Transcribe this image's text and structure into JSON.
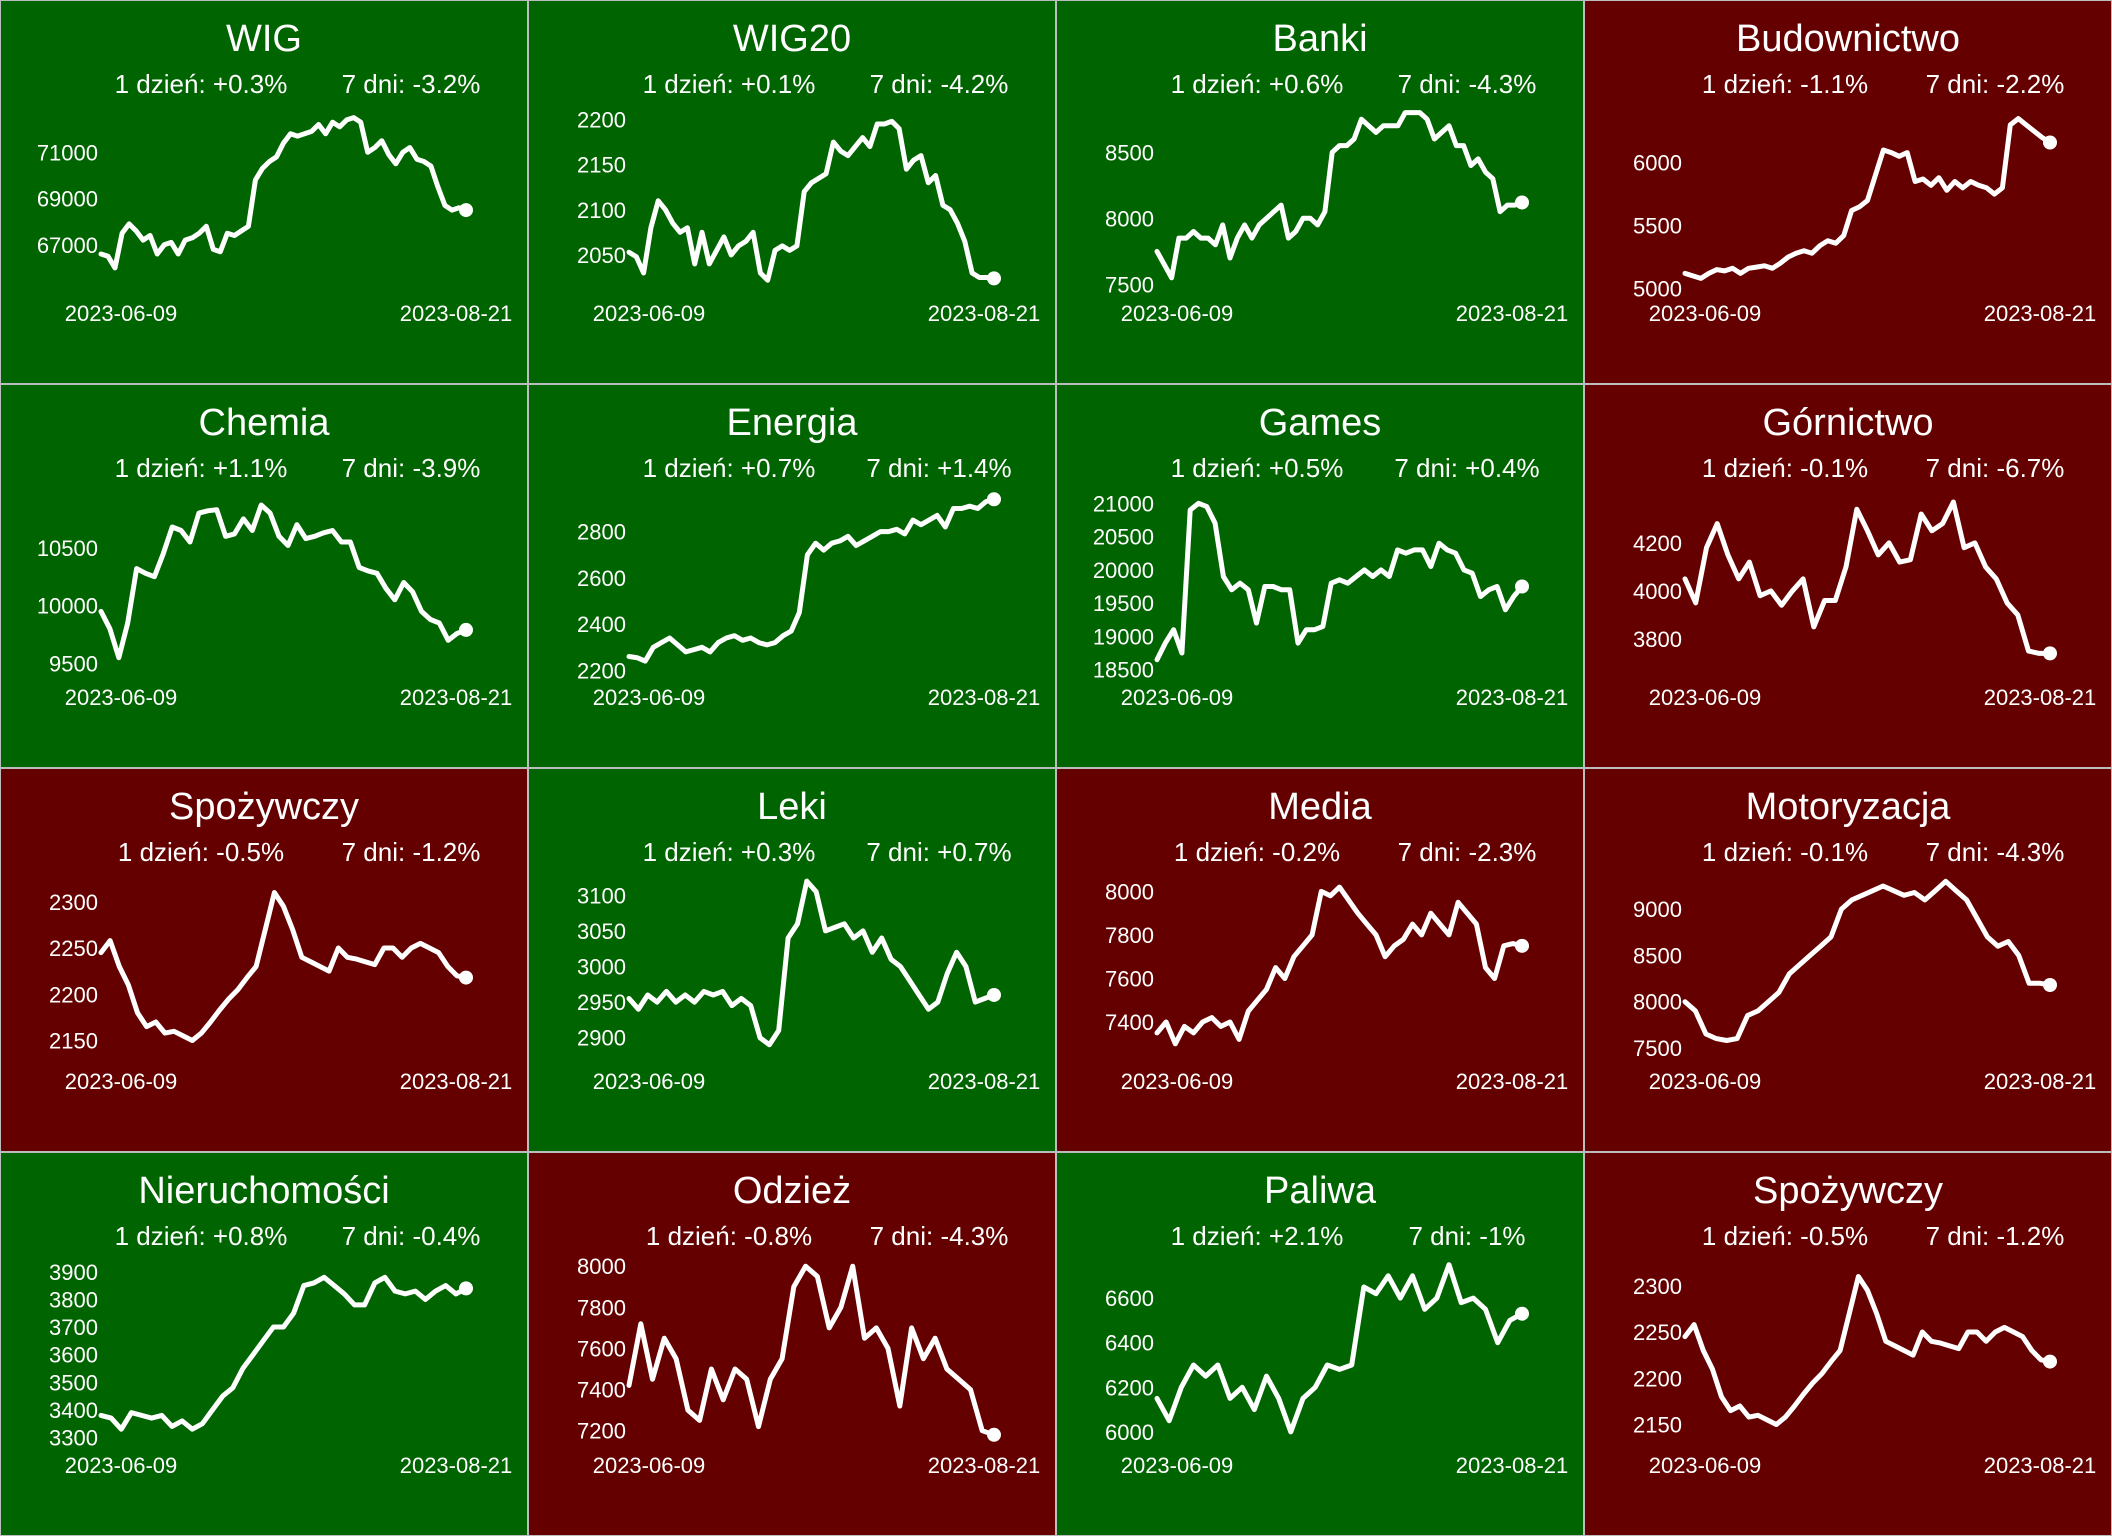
{
  "colors": {
    "up": "#006400",
    "down": "#640000",
    "line": "#ffffff"
  },
  "chart_data": [
    {
      "type": "line",
      "title": "WIG",
      "day_change": "1 dzień: +0.3%",
      "week_change": "7 dni: -3.2%",
      "trend": "up",
      "x_start": "2023-06-09",
      "x_end": "2023-08-21",
      "yticks": [
        67000,
        69000,
        71000
      ],
      "ylim": [
        65000,
        73000
      ],
      "values": [
        66600,
        66500,
        66000,
        67500,
        67900,
        67600,
        67200,
        67400,
        66600,
        67000,
        67100,
        66600,
        67200,
        67300,
        67500,
        67800,
        66800,
        66700,
        67500,
        67400,
        67600,
        67800,
        69800,
        70300,
        70600,
        70800,
        71400,
        71800,
        71700,
        71800,
        71900,
        72200,
        71800,
        72300,
        72100,
        72400,
        72500,
        72300,
        71000,
        71200,
        71500,
        70900,
        70500,
        71000,
        71200,
        70700,
        70600,
        70400,
        69500,
        68700,
        68500,
        68600,
        68500
      ]
    },
    {
      "type": "line",
      "title": "WIG20",
      "day_change": "1 dzień: +0.1%",
      "week_change": "7 dni: -4.2%",
      "trend": "up",
      "x_start": "2023-06-09",
      "x_end": "2023-08-21",
      "yticks": [
        2050,
        2100,
        2150,
        2200
      ],
      "ylim": [
        2010,
        2215
      ],
      "values": [
        2053,
        2048,
        2030,
        2080,
        2110,
        2100,
        2085,
        2075,
        2080,
        2040,
        2075,
        2040,
        2055,
        2070,
        2050,
        2060,
        2065,
        2075,
        2030,
        2022,
        2055,
        2060,
        2055,
        2060,
        2120,
        2130,
        2135,
        2140,
        2175,
        2165,
        2160,
        2170,
        2180,
        2170,
        2195,
        2195,
        2198,
        2190,
        2145,
        2155,
        2160,
        2130,
        2138,
        2105,
        2100,
        2085,
        2065,
        2030,
        2025,
        2025,
        2024
      ]
    },
    {
      "type": "line",
      "title": "Banki",
      "day_change": "1 dzień: +0.6%",
      "week_change": "7 dni: -4.3%",
      "trend": "up",
      "x_start": "2023-06-09",
      "x_end": "2023-08-21",
      "yticks": [
        7500,
        8000,
        8500
      ],
      "ylim": [
        7450,
        8850
      ],
      "values": [
        7750,
        7650,
        7550,
        7850,
        7850,
        7900,
        7850,
        7850,
        7800,
        7950,
        7700,
        7850,
        7950,
        7850,
        7950,
        8000,
        8050,
        8100,
        7850,
        7900,
        8000,
        8000,
        7950,
        8050,
        8500,
        8550,
        8550,
        8600,
        8750,
        8700,
        8650,
        8700,
        8700,
        8700,
        8800,
        8800,
        8800,
        8750,
        8600,
        8650,
        8700,
        8550,
        8550,
        8400,
        8450,
        8350,
        8300,
        8050,
        8100,
        8100,
        8120
      ]
    },
    {
      "type": "line",
      "title": "Budownictwo",
      "day_change": "1 dzień: -1.1%",
      "week_change": "7 dni: -2.2%",
      "trend": "down",
      "x_start": "2023-06-09",
      "x_end": "2023-08-21",
      "yticks": [
        5000,
        5500,
        6000
      ],
      "ylim": [
        4980,
        6450
      ],
      "values": [
        5120,
        5100,
        5080,
        5120,
        5150,
        5140,
        5160,
        5120,
        5160,
        5170,
        5180,
        5160,
        5200,
        5250,
        5280,
        5300,
        5280,
        5340,
        5380,
        5360,
        5420,
        5620,
        5650,
        5700,
        5900,
        6100,
        6080,
        6050,
        6080,
        5850,
        5870,
        5820,
        5880,
        5780,
        5850,
        5800,
        5850,
        5820,
        5800,
        5750,
        5800,
        6300,
        6350,
        6300,
        6250,
        6200,
        6160
      ]
    },
    {
      "type": "line",
      "title": "Chemia",
      "day_change": "1 dzień: +1.1%",
      "week_change": "7 dni: -3.9%",
      "trend": "up",
      "x_start": "2023-06-09",
      "x_end": "2023-08-21",
      "yticks": [
        9500,
        10000,
        10500
      ],
      "ylim": [
        9400,
        11000
      ],
      "values": [
        9950,
        9800,
        9550,
        9850,
        10320,
        10280,
        10250,
        10450,
        10680,
        10650,
        10550,
        10800,
        10820,
        10830,
        10600,
        10620,
        10750,
        10650,
        10870,
        10800,
        10600,
        10520,
        10700,
        10580,
        10600,
        10630,
        10650,
        10550,
        10550,
        10330,
        10300,
        10280,
        10150,
        10050,
        10200,
        10120,
        9950,
        9880,
        9850,
        9700,
        9760,
        9790
      ]
    },
    {
      "type": "line",
      "title": "Energia",
      "day_change": "1 dzień: +0.7%",
      "week_change": "7 dni: +1.4%",
      "trend": "up",
      "x_start": "2023-06-09",
      "x_end": "2023-08-21",
      "yticks": [
        2200,
        2400,
        2600,
        2800
      ],
      "ylim": [
        2180,
        2980
      ],
      "values": [
        2260,
        2255,
        2240,
        2300,
        2320,
        2340,
        2310,
        2280,
        2290,
        2300,
        2280,
        2320,
        2340,
        2350,
        2330,
        2340,
        2320,
        2310,
        2320,
        2350,
        2370,
        2450,
        2700,
        2750,
        2720,
        2750,
        2760,
        2780,
        2740,
        2760,
        2780,
        2800,
        2800,
        2810,
        2790,
        2850,
        2830,
        2850,
        2870,
        2820,
        2900,
        2900,
        2910,
        2900,
        2930,
        2940
      ]
    },
    {
      "type": "line",
      "title": "Games",
      "day_change": "1 dzień: +0.5%",
      "week_change": "7 dni: +0.4%",
      "trend": "up",
      "x_start": "2023-06-09",
      "x_end": "2023-08-21",
      "yticks": [
        18500,
        19000,
        19500,
        20000,
        20500,
        21000
      ],
      "ylim": [
        18420,
        21200
      ],
      "values": [
        18650,
        18900,
        19100,
        18750,
        20900,
        21000,
        20950,
        20700,
        19900,
        19700,
        19800,
        19700,
        19200,
        19750,
        19750,
        19700,
        19700,
        18900,
        19100,
        19100,
        19150,
        19800,
        19850,
        19800,
        19900,
        20000,
        19900,
        20000,
        19900,
        20300,
        20250,
        20300,
        20300,
        20050,
        20400,
        20300,
        20250,
        20000,
        19950,
        19600,
        19700,
        19750,
        19400,
        19600,
        19750
      ]
    },
    {
      "type": "line",
      "title": "Górnictwo",
      "day_change": "1 dzień: -0.1%",
      "week_change": "7 dni: -6.7%",
      "trend": "down",
      "x_start": "2023-06-09",
      "x_end": "2023-08-21",
      "yticks": [
        3800,
        4000,
        4200
      ],
      "ylim": [
        3650,
        4420
      ],
      "values": [
        4050,
        3950,
        4180,
        4280,
        4150,
        4050,
        4120,
        3980,
        4000,
        3940,
        4000,
        4050,
        3850,
        3960,
        3960,
        4100,
        4340,
        4250,
        4150,
        4200,
        4120,
        4130,
        4320,
        4250,
        4280,
        4370,
        4180,
        4200,
        4100,
        4050,
        3950,
        3900,
        3750,
        3740,
        3740
      ]
    },
    {
      "type": "line",
      "title": "Spożywczy",
      "day_change": "1 dzień: -0.5%",
      "week_change": "7 dni: -1.2%",
      "trend": "down",
      "x_start": "2023-06-09",
      "x_end": "2023-08-21",
      "yticks": [
        2150,
        2200,
        2250,
        2300
      ],
      "ylim": [
        2130,
        2330
      ],
      "values": [
        2245,
        2258,
        2230,
        2210,
        2180,
        2165,
        2170,
        2158,
        2160,
        2155,
        2150,
        2158,
        2170,
        2183,
        2195,
        2205,
        2218,
        2230,
        2270,
        2310,
        2295,
        2270,
        2240,
        2235,
        2230,
        2225,
        2250,
        2240,
        2238,
        2235,
        2232,
        2250,
        2250,
        2240,
        2250,
        2255,
        2250,
        2245,
        2230,
        2220,
        2218
      ]
    },
    {
      "type": "line",
      "title": "Leki",
      "day_change": "1 dzień: +0.3%",
      "week_change": "7 dni: +0.7%",
      "trend": "up",
      "x_start": "2023-06-09",
      "x_end": "2023-08-21",
      "yticks": [
        2900,
        2950,
        3000,
        3050,
        3100
      ],
      "ylim": [
        2870,
        3130
      ],
      "values": [
        2955,
        2940,
        2960,
        2950,
        2965,
        2950,
        2960,
        2950,
        2965,
        2960,
        2965,
        2945,
        2955,
        2945,
        2900,
        2890,
        2910,
        3040,
        3060,
        3120,
        3105,
        3050,
        3055,
        3060,
        3040,
        3050,
        3020,
        3040,
        3010,
        3000,
        2980,
        2960,
        2940,
        2950,
        2990,
        3020,
        3000,
        2950,
        2955,
        2960
      ]
    },
    {
      "type": "line",
      "title": "Media",
      "day_change": "1 dzień: -0.2%",
      "week_change": "7 dni: -2.3%",
      "trend": "down",
      "x_start": "2023-06-09",
      "x_end": "2023-08-21",
      "yticks": [
        7400,
        7600,
        7800,
        8000
      ],
      "ylim": [
        7230,
        8080
      ],
      "values": [
        7350,
        7400,
        7300,
        7380,
        7350,
        7400,
        7420,
        7380,
        7400,
        7320,
        7450,
        7500,
        7550,
        7650,
        7600,
        7700,
        7750,
        7800,
        8000,
        7980,
        8020,
        7960,
        7900,
        7850,
        7800,
        7700,
        7750,
        7780,
        7850,
        7800,
        7900,
        7850,
        7800,
        7950,
        7900,
        7850,
        7650,
        7600,
        7750,
        7760,
        7750
      ]
    },
    {
      "type": "line",
      "title": "Motoryzacja",
      "day_change": "1 dzień: -0.1%",
      "week_change": "7 dni: -4.3%",
      "trend": "down",
      "x_start": "2023-06-09",
      "x_end": "2023-08-21",
      "yticks": [
        7500,
        8000,
        8500,
        9000
      ],
      "ylim": [
        7380,
        9380
      ],
      "values": [
        8000,
        7900,
        7650,
        7600,
        7580,
        7600,
        7850,
        7900,
        8000,
        8100,
        8300,
        8400,
        8500,
        8600,
        8700,
        9000,
        9100,
        9150,
        9200,
        9250,
        9200,
        9150,
        9180,
        9100,
        9200,
        9300,
        9200,
        9100,
        8900,
        8700,
        8600,
        8650,
        8500,
        8200,
        8200,
        8180
      ]
    },
    {
      "type": "line",
      "title": "Nieruchomości",
      "day_change": "1 dzień: +0.8%",
      "week_change": "7 dni: -0.4%",
      "trend": "up",
      "x_start": "2023-06-09",
      "x_end": "2023-08-21",
      "yticks": [
        3300,
        3400,
        3500,
        3600,
        3700,
        3800,
        3900
      ],
      "ylim": [
        3280,
        3950
      ],
      "values": [
        3380,
        3370,
        3330,
        3390,
        3380,
        3370,
        3380,
        3340,
        3360,
        3330,
        3350,
        3400,
        3450,
        3480,
        3550,
        3600,
        3650,
        3700,
        3700,
        3750,
        3850,
        3860,
        3880,
        3850,
        3820,
        3780,
        3780,
        3860,
        3880,
        3830,
        3820,
        3830,
        3800,
        3830,
        3850,
        3820,
        3840
      ]
    },
    {
      "type": "line",
      "title": "Odzież",
      "day_change": "1 dzień: -0.8%",
      "week_change": "7 dni: -4.3%",
      "trend": "down",
      "x_start": "2023-06-09",
      "x_end": "2023-08-21",
      "yticks": [
        7200,
        7400,
        7600,
        7800,
        8000
      ],
      "ylim": [
        7140,
        8040
      ],
      "values": [
        7420,
        7720,
        7450,
        7650,
        7550,
        7300,
        7250,
        7500,
        7350,
        7500,
        7450,
        7220,
        7450,
        7550,
        7900,
        8000,
        7950,
        7700,
        7800,
        8000,
        7650,
        7700,
        7600,
        7320,
        7700,
        7550,
        7650,
        7500,
        7450,
        7400,
        7200,
        7180
      ]
    },
    {
      "type": "line",
      "title": "Paliwa",
      "day_change": "1 dzień: +2.1%",
      "week_change": "7 dni: -1%",
      "trend": "up",
      "x_start": "2023-06-09",
      "x_end": "2023-08-21",
      "yticks": [
        6000,
        6200,
        6400,
        6600
      ],
      "ylim": [
        5950,
        6780
      ],
      "values": [
        6150,
        6050,
        6200,
        6300,
        6250,
        6300,
        6150,
        6200,
        6100,
        6250,
        6150,
        6000,
        6150,
        6200,
        6300,
        6280,
        6300,
        6650,
        6620,
        6700,
        6600,
        6700,
        6550,
        6600,
        6750,
        6580,
        6600,
        6550,
        6400,
        6500,
        6530
      ]
    },
    {
      "type": "line",
      "title": "Spożywczy",
      "day_change": "1 dzień: -0.5%",
      "week_change": "7 dni: -1.2%",
      "trend": "down",
      "x_start": "2023-06-09",
      "x_end": "2023-08-21",
      "yticks": [
        2150,
        2200,
        2250,
        2300
      ],
      "ylim": [
        2130,
        2330
      ],
      "values": [
        2245,
        2258,
        2230,
        2210,
        2180,
        2165,
        2170,
        2158,
        2160,
        2155,
        2150,
        2158,
        2170,
        2183,
        2195,
        2205,
        2218,
        2230,
        2270,
        2310,
        2295,
        2270,
        2240,
        2235,
        2230,
        2225,
        2250,
        2240,
        2238,
        2235,
        2232,
        2250,
        2250,
        2240,
        2250,
        2255,
        2250,
        2245,
        2230,
        2220,
        2218
      ]
    }
  ]
}
